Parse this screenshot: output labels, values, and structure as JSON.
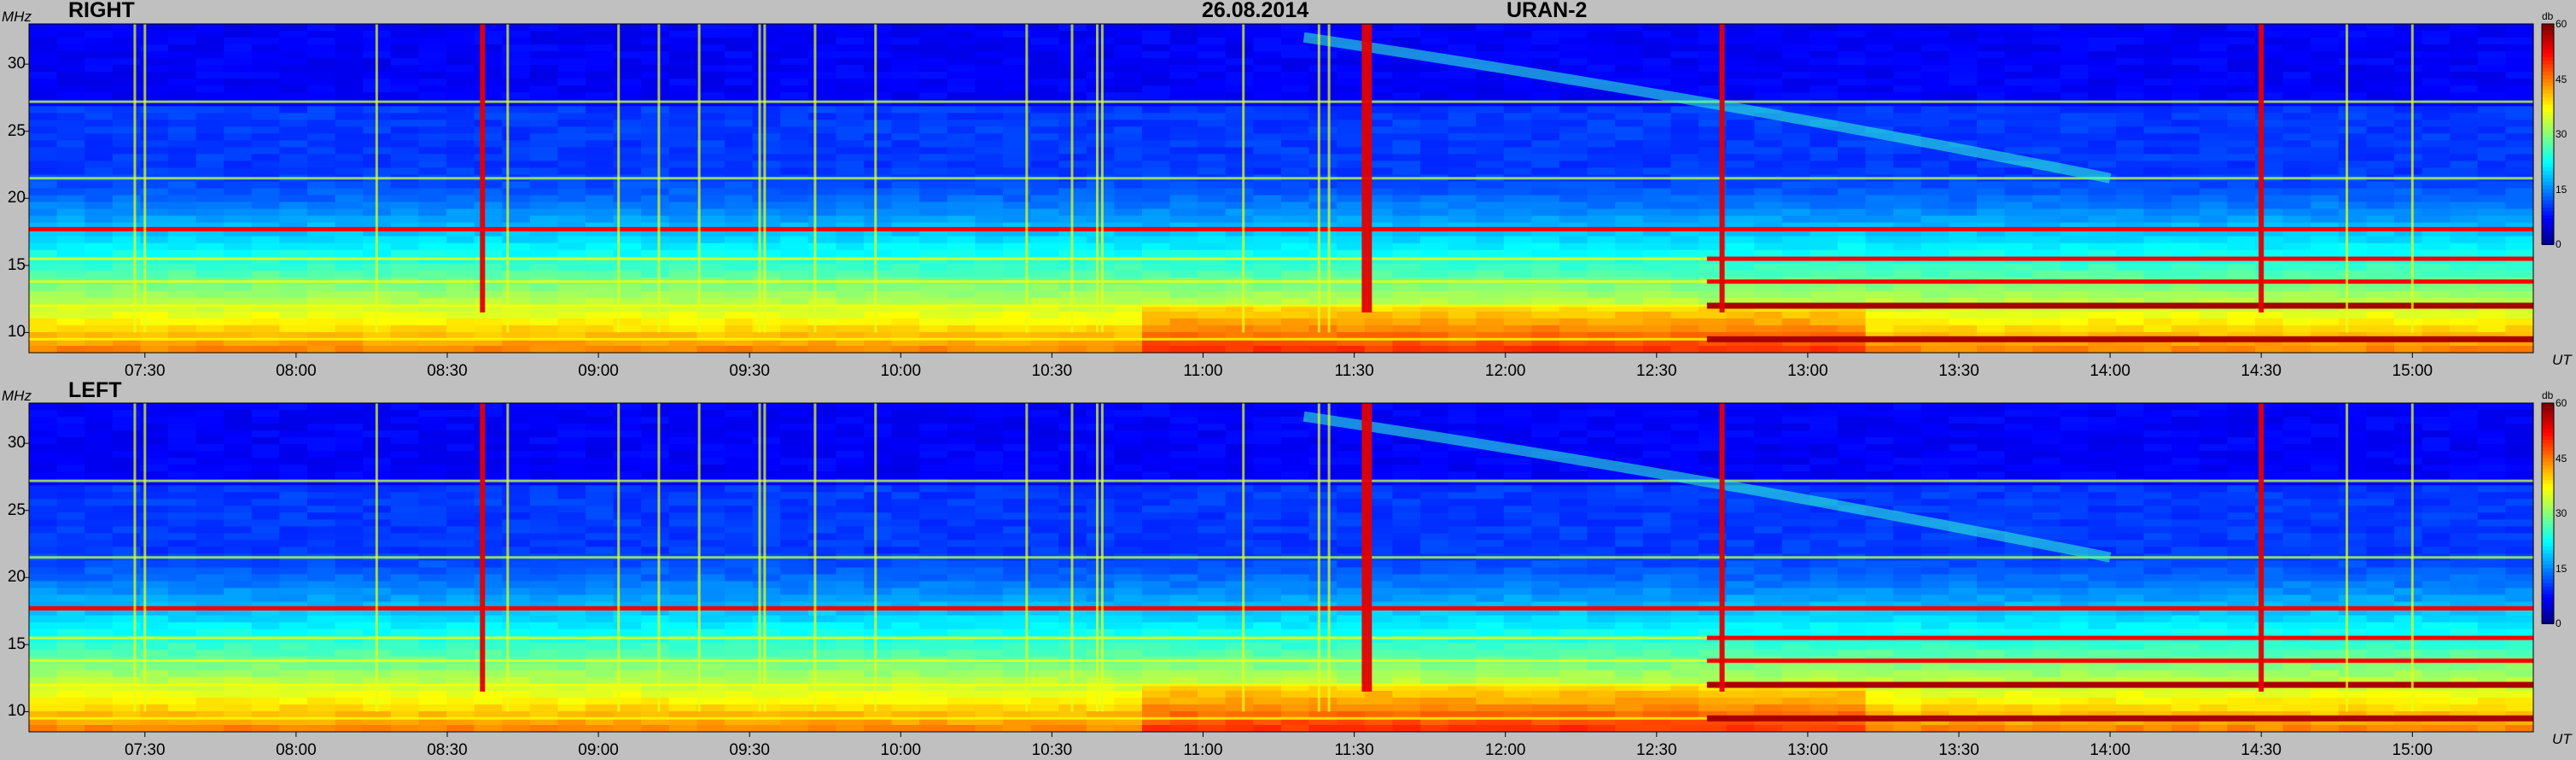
{
  "header": {
    "date": "26.08.2014",
    "instrument": "URAN-2"
  },
  "chart_data": [
    {
      "type": "heatmap",
      "title": "RIGHT",
      "ylabel": "MHz",
      "xlabel": "UT",
      "ylim": [
        8.5,
        33
      ],
      "yticks": [
        "10",
        "15",
        "20",
        "25",
        "30"
      ],
      "ytick_values": [
        10,
        15,
        20,
        25,
        30
      ],
      "xticks": [
        "07:30",
        "08:00",
        "08:30",
        "09:00",
        "09:30",
        "10:00",
        "10:30",
        "11:00",
        "11:30",
        "12:00",
        "12:30",
        "13:00",
        "13:30",
        "14:00",
        "14:30",
        "15:00"
      ],
      "xtick_minutes": [
        450,
        480,
        510,
        540,
        570,
        600,
        630,
        660,
        690,
        720,
        750,
        780,
        810,
        840,
        870,
        900
      ],
      "xlim_minutes": [
        427,
        924
      ],
      "colorbar": {
        "unit": "db",
        "ticks": [
          "0",
          "15",
          "30",
          "45",
          "60"
        ],
        "range": [
          0,
          60
        ]
      },
      "bursts_minutes": [
        448,
        450,
        496,
        517,
        522,
        544,
        552,
        560,
        572,
        573,
        583,
        595,
        625,
        634,
        639,
        640,
        668,
        683,
        685,
        692,
        693,
        763,
        870,
        887,
        900
      ],
      "strong_bursts_minutes": [
        517,
        692,
        693,
        763,
        870
      ],
      "bands_mhz": [
        9.5,
        12,
        13.8,
        15.5,
        17.7,
        21.5,
        27.2
      ]
    },
    {
      "type": "heatmap",
      "title": "LEFT",
      "ylabel": "MHz",
      "xlabel": "UT",
      "ylim": [
        8.5,
        33
      ],
      "yticks": [
        "10",
        "15",
        "20",
        "25",
        "30"
      ],
      "ytick_values": [
        10,
        15,
        20,
        25,
        30
      ],
      "xticks": [
        "07:30",
        "08:00",
        "08:30",
        "09:00",
        "09:30",
        "10:00",
        "10:30",
        "11:00",
        "11:30",
        "12:00",
        "12:30",
        "13:00",
        "13:30",
        "14:00",
        "14:30",
        "15:00"
      ],
      "xtick_minutes": [
        450,
        480,
        510,
        540,
        570,
        600,
        630,
        660,
        690,
        720,
        750,
        780,
        810,
        840,
        870,
        900
      ],
      "xlim_minutes": [
        427,
        924
      ],
      "colorbar": {
        "unit": "db",
        "ticks": [
          "0",
          "15",
          "30",
          "45",
          "60"
        ],
        "range": [
          0,
          60
        ]
      },
      "bursts_minutes": [
        448,
        450,
        496,
        517,
        522,
        544,
        552,
        560,
        572,
        573,
        583,
        595,
        625,
        634,
        639,
        640,
        668,
        683,
        685,
        692,
        693,
        763,
        870,
        887,
        900
      ],
      "strong_bursts_minutes": [
        517,
        692,
        693,
        763,
        870
      ],
      "bands_mhz": [
        9.5,
        12,
        13.8,
        15.5,
        17.7,
        21.5,
        27.2
      ]
    }
  ]
}
